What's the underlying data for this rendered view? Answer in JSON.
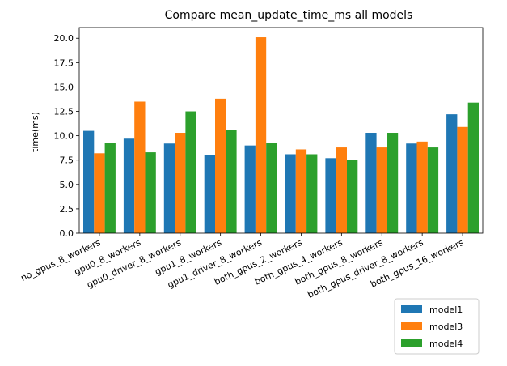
{
  "chart_data": {
    "type": "bar",
    "title": "Compare mean_update_time_ms all models",
    "xlabel": "",
    "ylabel": "time(ms)",
    "ylim": [
      0,
      21.1
    ],
    "yticks": [
      0.0,
      2.5,
      5.0,
      7.5,
      10.0,
      12.5,
      15.0,
      17.5,
      20.0
    ],
    "ytick_labels": [
      "0.0",
      "2.5",
      "5.0",
      "7.5",
      "10.0",
      "12.5",
      "15.0",
      "17.5",
      "20.0"
    ],
    "categories": [
      "no_gpus_8_workers",
      "gpu0_8_workers",
      "gpu0_driver_8_workers",
      "gpu1_8_workers",
      "gpu1_driver_8_workers",
      "both_gpus_2_workers",
      "both_gpus_4_workers",
      "both_gpus_8_workers",
      "both_gpus_driver_8_workers",
      "both_gpus_16_workers"
    ],
    "series": [
      {
        "name": "model1",
        "color": "#1f77b4",
        "values": [
          10.5,
          9.7,
          9.2,
          8.0,
          9.0,
          8.1,
          7.7,
          10.3,
          9.2,
          12.2
        ]
      },
      {
        "name": "model3",
        "color": "#ff7f0e",
        "values": [
          8.2,
          13.5,
          10.3,
          13.8,
          20.1,
          8.6,
          8.8,
          8.8,
          9.4,
          10.9
        ]
      },
      {
        "name": "model4",
        "color": "#2ca02c",
        "values": [
          9.3,
          8.3,
          12.5,
          10.6,
          9.3,
          8.1,
          7.5,
          10.3,
          8.8,
          13.4
        ]
      }
    ],
    "legend_position": "bottom-right",
    "grid": false
  }
}
